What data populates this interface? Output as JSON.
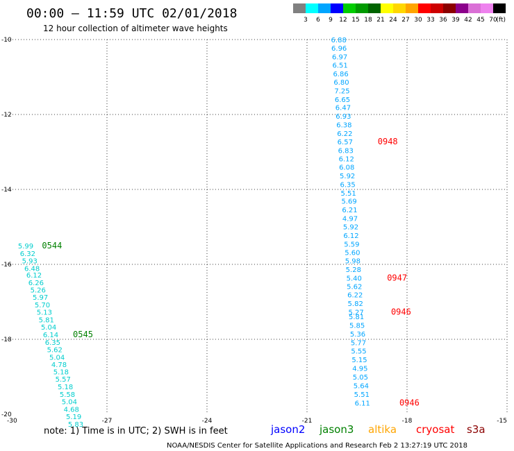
{
  "header": {
    "title": "00:00 – 11:59 UTC 02/01/2018",
    "subtitle": "12 hour collection of altimeter wave heights"
  },
  "colorbar": {
    "labels": [
      "3",
      "6",
      "9",
      "12",
      "15",
      "18",
      "21",
      "24",
      "27",
      "30",
      "33",
      "36",
      "39",
      "42",
      "45",
      "70",
      "(ft)"
    ],
    "colors": [
      "#808080",
      "#00ffff",
      "#00a5ff",
      "#0000ff",
      "#00cd00",
      "#009a00",
      "#006400",
      "#ffff00",
      "#ffd700",
      "#ffa500",
      "#ff0000",
      "#cd0000",
      "#8b0000",
      "#8b008b",
      "#da70d6",
      "#ee82ee",
      "#000000"
    ]
  },
  "chart_data": {
    "type": "scatter",
    "xlim": [
      -30,
      -15
    ],
    "ylim": [
      -20,
      -10
    ],
    "x_ticks": [
      "-30",
      "-27",
      "-24",
      "-21",
      "-18",
      "-15"
    ],
    "y_ticks": [
      "-10",
      "-12",
      "-14",
      "-16",
      "-18",
      "-20"
    ],
    "grid": true,
    "series": [
      {
        "color": "#00cdcd",
        "points": [
          {
            "x": -29.67,
            "y": -15.5,
            "v": "5.99"
          },
          {
            "x": -29.61,
            "y": -15.7,
            "v": "6.32"
          },
          {
            "x": -29.55,
            "y": -15.9,
            "v": "5.93"
          },
          {
            "x": -29.48,
            "y": -16.1,
            "v": "6.48"
          },
          {
            "x": -29.42,
            "y": -16.28,
            "v": "6.12"
          },
          {
            "x": -29.36,
            "y": -16.48,
            "v": "6.26"
          },
          {
            "x": -29.3,
            "y": -16.68,
            "v": "5.26"
          },
          {
            "x": -29.23,
            "y": -16.87,
            "v": "5.97"
          },
          {
            "x": -29.17,
            "y": -17.07,
            "v": "5.70"
          },
          {
            "x": -29.11,
            "y": -17.27,
            "v": "5.13"
          },
          {
            "x": -29.05,
            "y": -17.47,
            "v": "5.81"
          },
          {
            "x": -28.98,
            "y": -17.67,
            "v": "5.04"
          },
          {
            "x": -28.92,
            "y": -17.87,
            "v": "6.14"
          },
          {
            "x": -28.86,
            "y": -18.07,
            "v": "6.35"
          },
          {
            "x": -28.8,
            "y": -18.27,
            "v": "5.62"
          },
          {
            "x": -28.73,
            "y": -18.47,
            "v": "5.04"
          },
          {
            "x": -28.67,
            "y": -18.67,
            "v": "4.78"
          },
          {
            "x": -28.61,
            "y": -18.86,
            "v": "5.18"
          },
          {
            "x": -28.55,
            "y": -19.06,
            "v": "5.57"
          },
          {
            "x": -28.48,
            "y": -19.26,
            "v": "5.18"
          },
          {
            "x": -28.42,
            "y": -19.46,
            "v": "5.58"
          },
          {
            "x": -28.36,
            "y": -19.66,
            "v": "5.04"
          },
          {
            "x": -28.3,
            "y": -19.86,
            "v": "4.68"
          },
          {
            "x": -28.23,
            "y": -20.06,
            "v": "5.19"
          },
          {
            "x": -28.17,
            "y": -20.26,
            "v": "5.83"
          }
        ]
      },
      {
        "color": "#00a5ff",
        "points": [
          {
            "x": -20.28,
            "y": -10.0,
            "v": "6.88"
          },
          {
            "x": -20.27,
            "y": -10.22,
            "v": "6.96"
          },
          {
            "x": -20.25,
            "y": -10.45,
            "v": "6.97"
          },
          {
            "x": -20.24,
            "y": -10.68,
            "v": "6.51"
          },
          {
            "x": -20.22,
            "y": -10.91,
            "v": "6.86"
          },
          {
            "x": -20.2,
            "y": -11.13,
            "v": "6.80"
          },
          {
            "x": -20.18,
            "y": -11.36,
            "v": "7.25"
          },
          {
            "x": -20.17,
            "y": -11.59,
            "v": "6.65"
          },
          {
            "x": -20.15,
            "y": -11.81,
            "v": "6.47"
          },
          {
            "x": -20.14,
            "y": -12.04,
            "v": "6.93"
          },
          {
            "x": -20.12,
            "y": -12.27,
            "v": "6.38"
          },
          {
            "x": -20.1,
            "y": -12.5,
            "v": "6.22"
          },
          {
            "x": -20.09,
            "y": -12.72,
            "v": "6.57"
          },
          {
            "x": -20.07,
            "y": -12.95,
            "v": "6.83"
          },
          {
            "x": -20.05,
            "y": -13.18,
            "v": "6.12"
          },
          {
            "x": -20.04,
            "y": -13.4,
            "v": "6.08"
          },
          {
            "x": -20.02,
            "y": -13.63,
            "v": "5.92"
          },
          {
            "x": -20.01,
            "y": -13.86,
            "v": "6.35"
          },
          {
            "x": -19.99,
            "y": -14.09,
            "v": "5.51"
          },
          {
            "x": -19.97,
            "y": -14.31,
            "v": "5.69"
          },
          {
            "x": -19.95,
            "y": -14.54,
            "v": "6.21"
          },
          {
            "x": -19.94,
            "y": -14.77,
            "v": "4.97"
          },
          {
            "x": -19.92,
            "y": -14.99,
            "v": "5.92"
          },
          {
            "x": -19.91,
            "y": -15.22,
            "v": "6.12"
          },
          {
            "x": -19.89,
            "y": -15.45,
            "v": "5.59"
          },
          {
            "x": -19.87,
            "y": -15.68,
            "v": "5.60"
          },
          {
            "x": -19.86,
            "y": -15.9,
            "v": "5.98"
          },
          {
            "x": -19.84,
            "y": -16.13,
            "v": "5.28"
          },
          {
            "x": -19.82,
            "y": -16.36,
            "v": "5.40"
          },
          {
            "x": -19.81,
            "y": -16.58,
            "v": "5.62"
          },
          {
            "x": -19.79,
            "y": -16.81,
            "v": "6.22"
          },
          {
            "x": -19.78,
            "y": -17.04,
            "v": "5.82"
          },
          {
            "x": -19.76,
            "y": -17.27,
            "v": "5.27"
          },
          {
            "x": -19.75,
            "y": -17.39,
            "v": "5.81"
          },
          {
            "x": -19.73,
            "y": -17.62,
            "v": "5.85"
          },
          {
            "x": -19.71,
            "y": -17.85,
            "v": "5.36"
          },
          {
            "x": -19.69,
            "y": -18.08,
            "v": "5.77"
          },
          {
            "x": -19.68,
            "y": -18.31,
            "v": "5.55"
          },
          {
            "x": -19.66,
            "y": -18.54,
            "v": "5.15"
          },
          {
            "x": -19.64,
            "y": -18.77,
            "v": "4.95"
          },
          {
            "x": -19.63,
            "y": -19.0,
            "v": "5.05"
          },
          {
            "x": -19.61,
            "y": -19.23,
            "v": "5.64"
          },
          {
            "x": -19.59,
            "y": -19.46,
            "v": "5.51"
          },
          {
            "x": -19.57,
            "y": -19.69,
            "v": "6.11"
          }
        ]
      }
    ],
    "pass_times": [
      {
        "x": -28.95,
        "y": -15.5,
        "label": "0544",
        "color": "#008000"
      },
      {
        "x": -28.02,
        "y": -17.87,
        "label": "0545",
        "color": "#008000"
      },
      {
        "x": -18.88,
        "y": -12.72,
        "label": "0948",
        "color": "#ff0000"
      },
      {
        "x": -18.6,
        "y": -16.36,
        "label": "0947",
        "color": "#ff0000"
      },
      {
        "x": -18.48,
        "y": -17.27,
        "label": "0946",
        "color": "#ff0000"
      },
      {
        "x": -18.23,
        "y": -19.69,
        "label": "0946",
        "color": "#ff0000"
      }
    ]
  },
  "footer": {
    "note": "note:  1) Time is in UTC;  2) SWH is in feet",
    "satellites": [
      {
        "name": "jason2",
        "color": "#0000ff"
      },
      {
        "name": "jason3",
        "color": "#008000"
      },
      {
        "name": "altika",
        "color": "#ffa500"
      },
      {
        "name": "cryosat",
        "color": "#ff0000"
      },
      {
        "name": "s3a",
        "color": "#8b0000"
      }
    ],
    "credit": "NOAA/NESDIS Center for Satellite Applications and Research     Feb  2 13:27:19 UTC 2018"
  }
}
